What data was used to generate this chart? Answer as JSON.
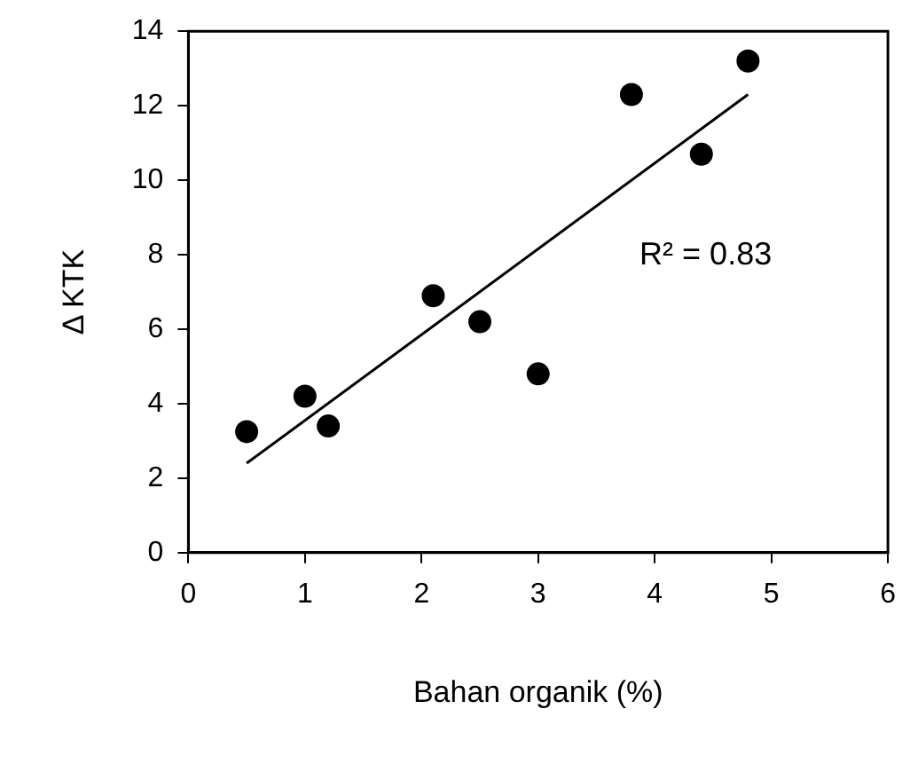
{
  "chart_data": {
    "type": "scatter",
    "xlabel": "Bahan organik (%)",
    "ylabel": "Δ KTK",
    "annotations": [
      "R² = 0.83"
    ],
    "xlim": [
      0,
      6
    ],
    "xticks": [
      0,
      1,
      2,
      3,
      4,
      5,
      6
    ],
    "ylim": [
      0,
      14
    ],
    "yticks": [
      0,
      2,
      4,
      6,
      8,
      10,
      12,
      14
    ],
    "grid": false,
    "legend": false,
    "series": [
      {
        "color": "#000000",
        "marker": "circle",
        "x": [
          0.5,
          1.0,
          1.2,
          2.1,
          2.5,
          3.0,
          3.8,
          4.4,
          4.8
        ],
        "values": [
          3.25,
          4.2,
          3.4,
          6.9,
          6.2,
          4.8,
          12.3,
          10.7,
          13.2
        ]
      },
      {
        "type": "line",
        "color": "#000000",
        "marker": "none",
        "x": [
          0.5,
          4.8
        ],
        "values": [
          2.4,
          12.3
        ]
      }
    ]
  }
}
